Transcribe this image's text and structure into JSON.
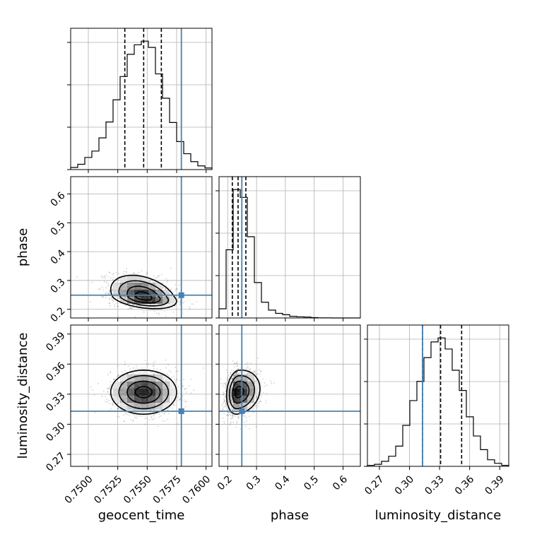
{
  "chart_data": {
    "type": "corner",
    "truth_color": "#4682b4",
    "grid": true,
    "parameters": [
      {
        "name": "geocent_time",
        "label": "geocent_time",
        "range": [
          0.7485,
          0.7605
        ],
        "ticks": [
          0.75,
          0.7525,
          0.755,
          0.7575,
          0.76
        ],
        "tick_labels": [
          "0.7500",
          "0.7525",
          "0.7550",
          "0.7575",
          "0.7600"
        ],
        "quantiles": [
          0.7531,
          0.7547,
          0.7562
        ],
        "truth": 0.7579,
        "hist": [
          0.4,
          1.0,
          2.3,
          3.5,
          6.0,
          9.0,
          13.2,
          17.6,
          21.8,
          23.6,
          24.3,
          23.1,
          18.1,
          13.5,
          8.9,
          5.3,
          3.0,
          1.5,
          0.7,
          0.3
        ]
      },
      {
        "name": "phase",
        "label": "phase",
        "range": [
          0.17,
          0.66
        ],
        "ticks": [
          0.2,
          0.3,
          0.4,
          0.5,
          0.6
        ],
        "tick_labels": [
          "0.2",
          "0.3",
          "0.4",
          "0.5",
          "0.6"
        ],
        "quantiles": [
          0.216,
          0.236,
          0.263
        ],
        "truth": 0.249,
        "hist": [
          7,
          52,
          98,
          92,
          62,
          27,
          12,
          6,
          3.5,
          2.5,
          1.2,
          0.9,
          0.7,
          0.3,
          0.1,
          0.05,
          0,
          0,
          0,
          0
        ]
      },
      {
        "name": "luminosity_distance",
        "label": "luminosity_distance",
        "range": [
          0.258,
          0.399
        ],
        "ticks": [
          0.27,
          0.3,
          0.33,
          0.36,
          0.39
        ],
        "tick_labels": [
          "0.27",
          "0.30",
          "0.33",
          "0.36",
          "0.39"
        ],
        "quantiles": [
          0.313,
          0.331,
          0.352
        ],
        "truth": 0.313,
        "hist": [
          0.2,
          0.4,
          1.0,
          2.0,
          4.0,
          8.1,
          13.0,
          16.8,
          21.5,
          24.6,
          25.4,
          23.2,
          19.0,
          15.0,
          9.8,
          6.0,
          3.3,
          1.3,
          0.6,
          0.2
        ]
      }
    ],
    "pairs": [
      {
        "x": "geocent_time",
        "y": "phase",
        "mean": [
          0.7547,
          0.242
        ],
        "std": [
          0.0014,
          0.02
        ],
        "rho": -0.35
      },
      {
        "x": "geocent_time",
        "y": "luminosity_distance",
        "mean": [
          0.7547,
          0.332
        ],
        "std": [
          0.0014,
          0.011
        ],
        "rho": 0.0
      },
      {
        "x": "phase",
        "y": "luminosity_distance",
        "mean": [
          0.236,
          0.332
        ],
        "std": [
          0.02,
          0.011
        ],
        "rho": 0.15
      }
    ]
  }
}
